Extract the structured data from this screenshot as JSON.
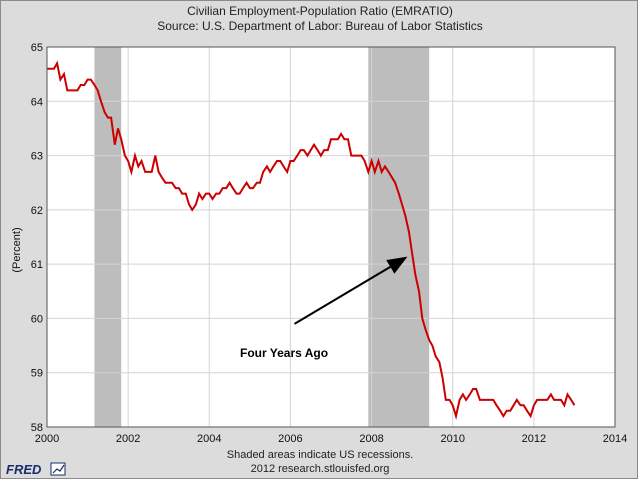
{
  "logo": "FRED",
  "chart_data": {
    "type": "line",
    "title": "Civilian Employment-Population Ratio (EMRATIO)",
    "subtitle": "Source: U.S. Department of Labor: Bureau of Labor Statistics",
    "xlabel": "",
    "ylabel": "(Percent)",
    "xlim": [
      2000,
      2014
    ],
    "ylim": [
      58,
      65
    ],
    "x_ticks": [
      2000,
      2002,
      2004,
      2006,
      2008,
      2010,
      2012,
      2014
    ],
    "y_ticks": [
      58,
      59,
      60,
      61,
      62,
      63,
      64,
      65
    ],
    "grid": true,
    "line_color": "#cc0000",
    "recession_color": "#bdbdbd",
    "recessions": [
      [
        2001.17,
        2001.83
      ],
      [
        2007.92,
        2009.42
      ]
    ],
    "annotation": {
      "text": "Four Years Ago",
      "arrow_tail": [
        2006.1,
        59.9
      ],
      "arrow_head": [
        2008.8,
        61.1
      ]
    },
    "footer": [
      "Shaded areas indicate US recessions.",
      "2012 research.stlouisfed.org"
    ],
    "series": [
      {
        "points": [
          [
            2000.0,
            64.6
          ],
          [
            2000.08,
            64.6
          ],
          [
            2000.17,
            64.6
          ],
          [
            2000.25,
            64.7
          ],
          [
            2000.33,
            64.4
          ],
          [
            2000.42,
            64.5
          ],
          [
            2000.5,
            64.2
          ],
          [
            2000.58,
            64.2
          ],
          [
            2000.67,
            64.2
          ],
          [
            2000.75,
            64.2
          ],
          [
            2000.83,
            64.3
          ],
          [
            2000.92,
            64.3
          ],
          [
            2001.0,
            64.4
          ],
          [
            2001.08,
            64.4
          ],
          [
            2001.17,
            64.3
          ],
          [
            2001.25,
            64.2
          ],
          [
            2001.33,
            64.0
          ],
          [
            2001.42,
            63.8
          ],
          [
            2001.5,
            63.7
          ],
          [
            2001.58,
            63.7
          ],
          [
            2001.67,
            63.2
          ],
          [
            2001.75,
            63.5
          ],
          [
            2001.83,
            63.3
          ],
          [
            2001.92,
            63.0
          ],
          [
            2002.0,
            62.9
          ],
          [
            2002.08,
            62.7
          ],
          [
            2002.17,
            63.0
          ],
          [
            2002.25,
            62.8
          ],
          [
            2002.33,
            62.9
          ],
          [
            2002.42,
            62.7
          ],
          [
            2002.5,
            62.7
          ],
          [
            2002.58,
            62.7
          ],
          [
            2002.67,
            63.0
          ],
          [
            2002.75,
            62.7
          ],
          [
            2002.83,
            62.6
          ],
          [
            2002.92,
            62.5
          ],
          [
            2003.0,
            62.5
          ],
          [
            2003.08,
            62.5
          ],
          [
            2003.17,
            62.4
          ],
          [
            2003.25,
            62.4
          ],
          [
            2003.33,
            62.3
          ],
          [
            2003.42,
            62.3
          ],
          [
            2003.5,
            62.1
          ],
          [
            2003.58,
            62.0
          ],
          [
            2003.67,
            62.1
          ],
          [
            2003.75,
            62.3
          ],
          [
            2003.83,
            62.2
          ],
          [
            2003.92,
            62.3
          ],
          [
            2004.0,
            62.3
          ],
          [
            2004.08,
            62.2
          ],
          [
            2004.17,
            62.3
          ],
          [
            2004.25,
            62.3
          ],
          [
            2004.33,
            62.4
          ],
          [
            2004.42,
            62.4
          ],
          [
            2004.5,
            62.5
          ],
          [
            2004.58,
            62.4
          ],
          [
            2004.67,
            62.3
          ],
          [
            2004.75,
            62.3
          ],
          [
            2004.83,
            62.4
          ],
          [
            2004.92,
            62.5
          ],
          [
            2005.0,
            62.4
          ],
          [
            2005.08,
            62.4
          ],
          [
            2005.17,
            62.5
          ],
          [
            2005.25,
            62.5
          ],
          [
            2005.33,
            62.7
          ],
          [
            2005.42,
            62.8
          ],
          [
            2005.5,
            62.7
          ],
          [
            2005.58,
            62.8
          ],
          [
            2005.67,
            62.9
          ],
          [
            2005.75,
            62.9
          ],
          [
            2005.83,
            62.8
          ],
          [
            2005.92,
            62.7
          ],
          [
            2006.0,
            62.9
          ],
          [
            2006.08,
            62.9
          ],
          [
            2006.17,
            63.0
          ],
          [
            2006.25,
            63.1
          ],
          [
            2006.33,
            63.1
          ],
          [
            2006.42,
            63.0
          ],
          [
            2006.5,
            63.1
          ],
          [
            2006.58,
            63.2
          ],
          [
            2006.67,
            63.1
          ],
          [
            2006.75,
            63.0
          ],
          [
            2006.83,
            63.1
          ],
          [
            2006.92,
            63.1
          ],
          [
            2007.0,
            63.3
          ],
          [
            2007.08,
            63.3
          ],
          [
            2007.17,
            63.3
          ],
          [
            2007.25,
            63.4
          ],
          [
            2007.33,
            63.3
          ],
          [
            2007.42,
            63.3
          ],
          [
            2007.5,
            63.0
          ],
          [
            2007.58,
            63.0
          ],
          [
            2007.67,
            63.0
          ],
          [
            2007.75,
            63.0
          ],
          [
            2007.83,
            62.9
          ],
          [
            2007.92,
            62.7
          ],
          [
            2008.0,
            62.9
          ],
          [
            2008.08,
            62.7
          ],
          [
            2008.17,
            62.9
          ],
          [
            2008.25,
            62.7
          ],
          [
            2008.33,
            62.8
          ],
          [
            2008.42,
            62.7
          ],
          [
            2008.5,
            62.6
          ],
          [
            2008.58,
            62.5
          ],
          [
            2008.67,
            62.3
          ],
          [
            2008.75,
            62.1
          ],
          [
            2008.83,
            61.9
          ],
          [
            2008.92,
            61.6
          ],
          [
            2009.0,
            61.2
          ],
          [
            2009.08,
            60.8
          ],
          [
            2009.17,
            60.5
          ],
          [
            2009.25,
            60.0
          ],
          [
            2009.33,
            59.8
          ],
          [
            2009.42,
            59.6
          ],
          [
            2009.5,
            59.5
          ],
          [
            2009.58,
            59.3
          ],
          [
            2009.67,
            59.2
          ],
          [
            2009.75,
            58.9
          ],
          [
            2009.83,
            58.5
          ],
          [
            2009.92,
            58.5
          ],
          [
            2010.0,
            58.4
          ],
          [
            2010.08,
            58.2
          ],
          [
            2010.17,
            58.5
          ],
          [
            2010.25,
            58.6
          ],
          [
            2010.33,
            58.5
          ],
          [
            2010.42,
            58.6
          ],
          [
            2010.5,
            58.7
          ],
          [
            2010.58,
            58.7
          ],
          [
            2010.67,
            58.5
          ],
          [
            2010.75,
            58.5
          ],
          [
            2010.83,
            58.5
          ],
          [
            2010.92,
            58.5
          ],
          [
            2011.0,
            58.5
          ],
          [
            2011.08,
            58.4
          ],
          [
            2011.17,
            58.3
          ],
          [
            2011.25,
            58.2
          ],
          [
            2011.33,
            58.3
          ],
          [
            2011.42,
            58.3
          ],
          [
            2011.5,
            58.4
          ],
          [
            2011.58,
            58.5
          ],
          [
            2011.67,
            58.4
          ],
          [
            2011.75,
            58.4
          ],
          [
            2011.83,
            58.3
          ],
          [
            2011.92,
            58.2
          ],
          [
            2012.0,
            58.4
          ],
          [
            2012.08,
            58.5
          ],
          [
            2012.17,
            58.5
          ],
          [
            2012.25,
            58.5
          ],
          [
            2012.33,
            58.5
          ],
          [
            2012.42,
            58.6
          ],
          [
            2012.5,
            58.5
          ],
          [
            2012.58,
            58.5
          ],
          [
            2012.67,
            58.5
          ],
          [
            2012.75,
            58.4
          ],
          [
            2012.83,
            58.6
          ],
          [
            2012.92,
            58.5
          ],
          [
            2013.0,
            58.4
          ]
        ]
      }
    ]
  }
}
